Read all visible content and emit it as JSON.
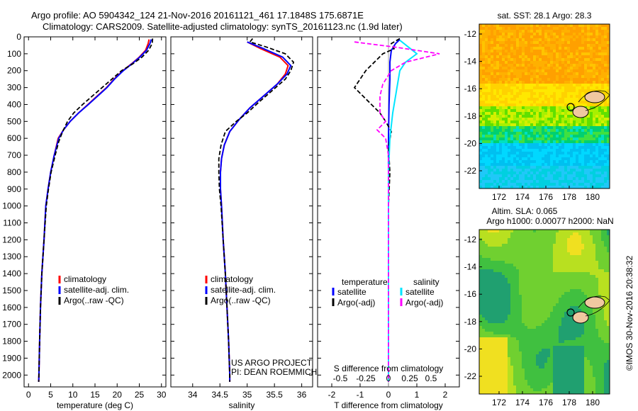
{
  "header": {
    "line1": "Argo profile: AO 5904342_124 21-Nov-2016 20161121_461 17.1848S 175.6871E",
    "line2": "Climatology: CARS2009. Satellite-adjusted climatology: synTS_20161123.nc (1.9d later)"
  },
  "colors": {
    "climatology": "#ff0000",
    "satellite": "#0000ff",
    "argo": "#000000",
    "temp_diff_satellite": "#0000ff",
    "salinity_diff_satellite": "#00e5ff",
    "salinity_diff_argo": "#ff00ff"
  },
  "depth_axis": {
    "ticks": [
      "0",
      "100",
      "200",
      "300",
      "400",
      "500",
      "600",
      "700",
      "800",
      "900",
      "1000",
      "1100",
      "1200",
      "1300",
      "1400",
      "1500",
      "1600",
      "1700",
      "1800",
      "1900",
      "2000"
    ],
    "range": [
      0,
      2070
    ]
  },
  "chart_data": [
    {
      "id": "temperature",
      "type": "line",
      "xlabel": "temperature (deg C)",
      "xlim": [
        -1,
        31
      ],
      "xticks": [
        "0",
        "5",
        "10",
        "15",
        "20",
        "25",
        "30"
      ],
      "ylim": [
        0,
        2070
      ],
      "legend": [
        "climatology",
        "satellite-adj. clim.",
        "Argo(..raw -QC)"
      ],
      "series": [
        {
          "name": "climatology",
          "style": "solid",
          "points": [
            [
              27.2,
              15
            ],
            [
              27.0,
              40
            ],
            [
              26.4,
              80
            ],
            [
              25.0,
              120
            ],
            [
              23.2,
              160
            ],
            [
              21.3,
              200
            ],
            [
              19.3,
              250
            ],
            [
              17.6,
              300
            ],
            [
              15.5,
              350
            ],
            [
              13.4,
              400
            ],
            [
              11.3,
              450
            ],
            [
              9.4,
              500
            ],
            [
              7.9,
              550
            ],
            [
              6.7,
              600
            ],
            [
              5.8,
              700
            ],
            [
              5.0,
              800
            ],
            [
              4.4,
              900
            ],
            [
              3.9,
              1000
            ],
            [
              3.5,
              1200
            ],
            [
              3.0,
              1400
            ],
            [
              2.7,
              1600
            ],
            [
              2.5,
              1800
            ],
            [
              2.35,
              2000
            ],
            [
              2.3,
              2040
            ]
          ]
        },
        {
          "name": "satellite-adj. clim.",
          "style": "solid",
          "points": [
            [
              27.7,
              15
            ],
            [
              27.4,
              40
            ],
            [
              26.6,
              80
            ],
            [
              25.1,
              120
            ],
            [
              23.3,
              160
            ],
            [
              21.4,
              200
            ],
            [
              19.4,
              250
            ],
            [
              17.7,
              300
            ],
            [
              15.6,
              350
            ],
            [
              13.5,
              400
            ],
            [
              11.3,
              450
            ],
            [
              9.4,
              500
            ],
            [
              7.9,
              550
            ],
            [
              6.8,
              600
            ],
            [
              5.8,
              700
            ],
            [
              5.0,
              800
            ],
            [
              4.4,
              900
            ],
            [
              3.9,
              1000
            ],
            [
              3.5,
              1200
            ],
            [
              3.0,
              1400
            ],
            [
              2.7,
              1600
            ],
            [
              2.5,
              1800
            ],
            [
              2.35,
              2000
            ],
            [
              2.3,
              2040
            ]
          ]
        },
        {
          "name": "Argo(..raw -QC)",
          "style": "dashed",
          "points": [
            [
              28.0,
              10
            ],
            [
              27.9,
              40
            ],
            [
              27.1,
              80
            ],
            [
              25.6,
              120
            ],
            [
              23.5,
              160
            ],
            [
              21.0,
              200
            ],
            [
              18.8,
              250
            ],
            [
              16.6,
              300
            ],
            [
              14.4,
              350
            ],
            [
              12.2,
              400
            ],
            [
              10.2,
              450
            ],
            [
              8.8,
              500
            ],
            [
              7.7,
              560
            ],
            [
              6.8,
              620
            ],
            [
              6.0,
              700
            ],
            [
              5.1,
              800
            ],
            [
              4.5,
              900
            ],
            [
              4.0,
              1000
            ],
            [
              3.5,
              1200
            ],
            [
              3.0,
              1400
            ],
            [
              2.7,
              1600
            ],
            [
              2.5,
              1800
            ],
            [
              2.35,
              2000
            ],
            [
              2.3,
              2040
            ]
          ]
        }
      ]
    },
    {
      "id": "salinity",
      "type": "line",
      "xlabel": "salinity",
      "xlim": [
        33.6,
        36.2
      ],
      "xticks": [
        "34",
        "34.5",
        "35",
        "35.5",
        "36"
      ],
      "ylim": [
        0,
        2070
      ],
      "legend": [
        "climatology",
        "satellite-adj. clim.",
        "Argo(..raw -QC)"
      ],
      "annotation": [
        "US ARGO PROJECT",
        "PI: DEAN ROEMMICH"
      ],
      "series": [
        {
          "name": "climatology",
          "style": "solid",
          "points": [
            [
              35.0,
              30
            ],
            [
              35.25,
              70
            ],
            [
              35.6,
              120
            ],
            [
              35.75,
              170
            ],
            [
              35.7,
              220
            ],
            [
              35.55,
              280
            ],
            [
              35.3,
              350
            ],
            [
              35.05,
              420
            ],
            [
              34.85,
              490
            ],
            [
              34.68,
              560
            ],
            [
              34.58,
              640
            ],
            [
              34.53,
              720
            ],
            [
              34.51,
              800
            ],
            [
              34.51,
              900
            ],
            [
              34.53,
              1000
            ],
            [
              34.56,
              1200
            ],
            [
              34.6,
              1400
            ],
            [
              34.63,
              1600
            ],
            [
              34.66,
              1800
            ],
            [
              34.68,
              2000
            ],
            [
              34.68,
              2040
            ]
          ]
        },
        {
          "name": "satellite-adj. clim.",
          "style": "solid",
          "points": [
            [
              35.0,
              30
            ],
            [
              35.3,
              70
            ],
            [
              35.65,
              120
            ],
            [
              35.8,
              170
            ],
            [
              35.73,
              220
            ],
            [
              35.55,
              280
            ],
            [
              35.3,
              350
            ],
            [
              35.05,
              420
            ],
            [
              34.85,
              490
            ],
            [
              34.68,
              560
            ],
            [
              34.58,
              640
            ],
            [
              34.53,
              720
            ],
            [
              34.51,
              800
            ],
            [
              34.51,
              900
            ],
            [
              34.53,
              1000
            ],
            [
              34.56,
              1200
            ],
            [
              34.6,
              1400
            ],
            [
              34.63,
              1600
            ],
            [
              34.66,
              1800
            ],
            [
              34.68,
              2000
            ],
            [
              34.68,
              2040
            ]
          ]
        },
        {
          "name": "Argo(..raw -QC)",
          "style": "dashed",
          "points": [
            [
              35.1,
              10
            ],
            [
              35.05,
              30
            ],
            [
              35.35,
              60
            ],
            [
              35.7,
              100
            ],
            [
              35.85,
              150
            ],
            [
              35.8,
              200
            ],
            [
              35.7,
              250
            ],
            [
              35.45,
              320
            ],
            [
              35.2,
              390
            ],
            [
              35.0,
              450
            ],
            [
              34.8,
              500
            ],
            [
              34.6,
              560
            ],
            [
              34.52,
              640
            ],
            [
              34.48,
              720
            ],
            [
              34.48,
              800
            ],
            [
              34.49,
              900
            ],
            [
              34.52,
              1000
            ],
            [
              34.56,
              1200
            ],
            [
              34.6,
              1400
            ],
            [
              34.63,
              1600
            ],
            [
              34.66,
              1800
            ],
            [
              34.68,
              2000
            ],
            [
              34.68,
              2040
            ]
          ]
        }
      ]
    },
    {
      "id": "differences",
      "type": "line",
      "xlabel": "T difference from climatology",
      "xlim": [
        -2.5,
        2.5
      ],
      "xticks": [
        "-2",
        "-1",
        "0",
        "1",
        "2"
      ],
      "top_axis_label": "S difference from climatology",
      "top_xticks": [
        "-0.5",
        "-0.25",
        "0",
        "0.25",
        "0.5"
      ],
      "ylim": [
        0,
        2070
      ],
      "legend_left": {
        "title": "temperature",
        "items": [
          "satellite",
          "Argo(-adj)"
        ]
      },
      "legend_right": {
        "title": "salinity",
        "items": [
          "satellite",
          "Argo(-adj)"
        ]
      },
      "series": [
        {
          "name": "temperature satellite",
          "style": "solid",
          "points": [
            [
              0.4,
              15
            ],
            [
              0.25,
              40
            ],
            [
              0.1,
              80
            ],
            [
              0.05,
              150
            ],
            [
              0.05,
              250
            ],
            [
              0.02,
              400
            ],
            [
              0.0,
              600
            ],
            [
              0.0,
              1000
            ],
            [
              0.0,
              2040
            ]
          ]
        },
        {
          "name": "temperature Argo(-adj)",
          "style": "dashed",
          "points": [
            [
              0.4,
              10
            ],
            [
              0.1,
              40
            ],
            [
              0.2,
              70
            ],
            [
              -0.2,
              100
            ],
            [
              -0.5,
              150
            ],
            [
              -0.8,
              200
            ],
            [
              -1.0,
              250
            ],
            [
              -1.2,
              300
            ],
            [
              -0.9,
              350
            ],
            [
              -0.6,
              400
            ],
            [
              -0.3,
              450
            ],
            [
              -0.1,
              500
            ],
            [
              0.1,
              560
            ],
            [
              0.0,
              650
            ],
            [
              0.05,
              800
            ],
            [
              0.0,
              1000
            ],
            [
              0.0,
              2040
            ]
          ]
        },
        {
          "name": "salinity satellite",
          "style": "solid",
          "points": [
            [
              0.4,
              20
            ],
            [
              0.7,
              60
            ],
            [
              1.0,
              100
            ],
            [
              0.6,
              150
            ],
            [
              0.4,
              200
            ],
            [
              0.3,
              300
            ],
            [
              0.15,
              450
            ],
            [
              0.05,
              600
            ],
            [
              0.0,
              800
            ],
            [
              0.0,
              2040
            ]
          ]
        },
        {
          "name": "salinity Argo(-adj)",
          "style": "dashed",
          "points": [
            [
              -1.2,
              30
            ],
            [
              0.2,
              60
            ],
            [
              1.8,
              100
            ],
            [
              0.6,
              150
            ],
            [
              0.1,
              200
            ],
            [
              -0.2,
              280
            ],
            [
              -0.3,
              350
            ],
            [
              -0.3,
              450
            ],
            [
              -0.1,
              500
            ],
            [
              -0.4,
              550
            ],
            [
              -0.1,
              600
            ],
            [
              0.0,
              700
            ],
            [
              0.0,
              800
            ],
            [
              0.0,
              2040
            ]
          ]
        }
      ]
    }
  ],
  "maps": [
    {
      "id": "sst",
      "title": "sat. SST: 28.1  Argo: 28.3",
      "xticks": [
        "172",
        "174",
        "176",
        "178",
        "180"
      ],
      "yticks": [
        "-12",
        "-14",
        "-16",
        "-18",
        "-20",
        "-22"
      ]
    },
    {
      "id": "sla",
      "title_line1": "Altim. SLA: 0.065",
      "title_line2": "Argo h1000: 0.00077 h2000: NaN",
      "xticks": [
        "172",
        "174",
        "176",
        "178",
        "180"
      ],
      "yticks": [
        "-12",
        "-14",
        "-16",
        "-18",
        "-20",
        "-22"
      ]
    }
  ],
  "footer": {
    "vertical_credit": "©IMOS 30-Nov-2016 20:38:32"
  }
}
